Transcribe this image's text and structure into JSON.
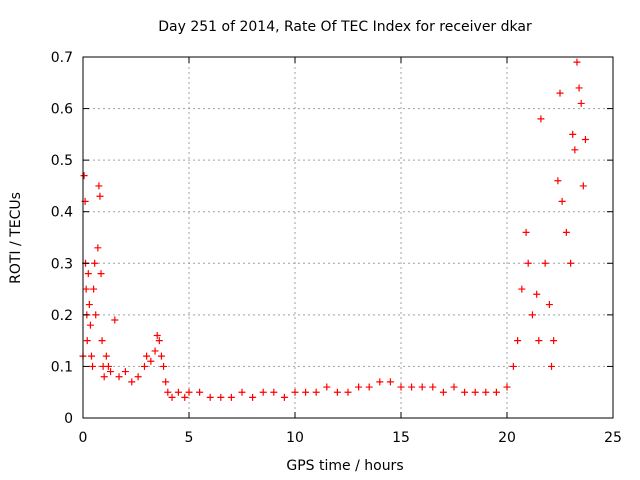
{
  "chart_data": {
    "type": "scatter",
    "title": "Day 251 of 2014, Rate Of TEC Index for receiver dkar",
    "xlabel": "GPS time / hours",
    "ylabel": "ROTI / TECUs",
    "xlim": [
      0,
      25
    ],
    "ylim": [
      0,
      0.7
    ],
    "xticks": [
      "0",
      "5",
      "10",
      "15",
      "20",
      "25"
    ],
    "yticks": [
      "0",
      "0.1",
      "0.2",
      "0.3",
      "0.4",
      "0.5",
      "0.6",
      "0.7"
    ],
    "grid": true,
    "marker": "+",
    "color": "#ff0000",
    "series": [
      {
        "name": "ROTI",
        "x": [
          0.0,
          0.05,
          0.1,
          0.12,
          0.15,
          0.18,
          0.2,
          0.25,
          0.3,
          0.35,
          0.4,
          0.45,
          0.5,
          0.55,
          0.6,
          0.7,
          0.75,
          0.8,
          0.85,
          0.9,
          0.95,
          1.0,
          1.1,
          1.2,
          1.3,
          1.5,
          1.7,
          2.0,
          2.3,
          2.6,
          2.9,
          3.0,
          3.2,
          3.4,
          3.5,
          3.6,
          3.7,
          3.8,
          3.9,
          4.0,
          4.2,
          4.5,
          4.8,
          5.0,
          5.5,
          6.0,
          6.5,
          7.0,
          7.5,
          8.0,
          8.5,
          9.0,
          9.5,
          10.0,
          10.5,
          11.0,
          11.5,
          12.0,
          12.5,
          13.0,
          13.5,
          14.0,
          14.5,
          15.0,
          15.5,
          16.0,
          16.5,
          17.0,
          17.5,
          18.0,
          18.5,
          19.0,
          19.5,
          20.0,
          20.3,
          20.5,
          20.7,
          20.9,
          21.0,
          21.2,
          21.4,
          21.5,
          21.6,
          21.8,
          22.0,
          22.1,
          22.2,
          22.4,
          22.5,
          22.6,
          22.8,
          23.0,
          23.1,
          23.2,
          23.3,
          23.4,
          23.5,
          23.6,
          23.7
        ],
        "y": [
          0.12,
          0.47,
          0.42,
          0.3,
          0.25,
          0.2,
          0.15,
          0.28,
          0.22,
          0.18,
          0.12,
          0.1,
          0.25,
          0.3,
          0.2,
          0.33,
          0.45,
          0.43,
          0.28,
          0.15,
          0.1,
          0.08,
          0.12,
          0.1,
          0.09,
          0.19,
          0.08,
          0.09,
          0.07,
          0.08,
          0.1,
          0.12,
          0.11,
          0.13,
          0.16,
          0.15,
          0.12,
          0.1,
          0.07,
          0.05,
          0.04,
          0.05,
          0.04,
          0.05,
          0.05,
          0.04,
          0.04,
          0.04,
          0.05,
          0.04,
          0.05,
          0.05,
          0.04,
          0.05,
          0.05,
          0.05,
          0.06,
          0.05,
          0.05,
          0.06,
          0.06,
          0.07,
          0.07,
          0.06,
          0.06,
          0.06,
          0.06,
          0.05,
          0.06,
          0.05,
          0.05,
          0.05,
          0.05,
          0.06,
          0.1,
          0.15,
          0.25,
          0.36,
          0.3,
          0.2,
          0.24,
          0.15,
          0.58,
          0.3,
          0.22,
          0.1,
          0.15,
          0.46,
          0.63,
          0.42,
          0.36,
          0.3,
          0.55,
          0.52,
          0.69,
          0.64,
          0.61,
          0.45,
          0.54
        ]
      }
    ]
  }
}
